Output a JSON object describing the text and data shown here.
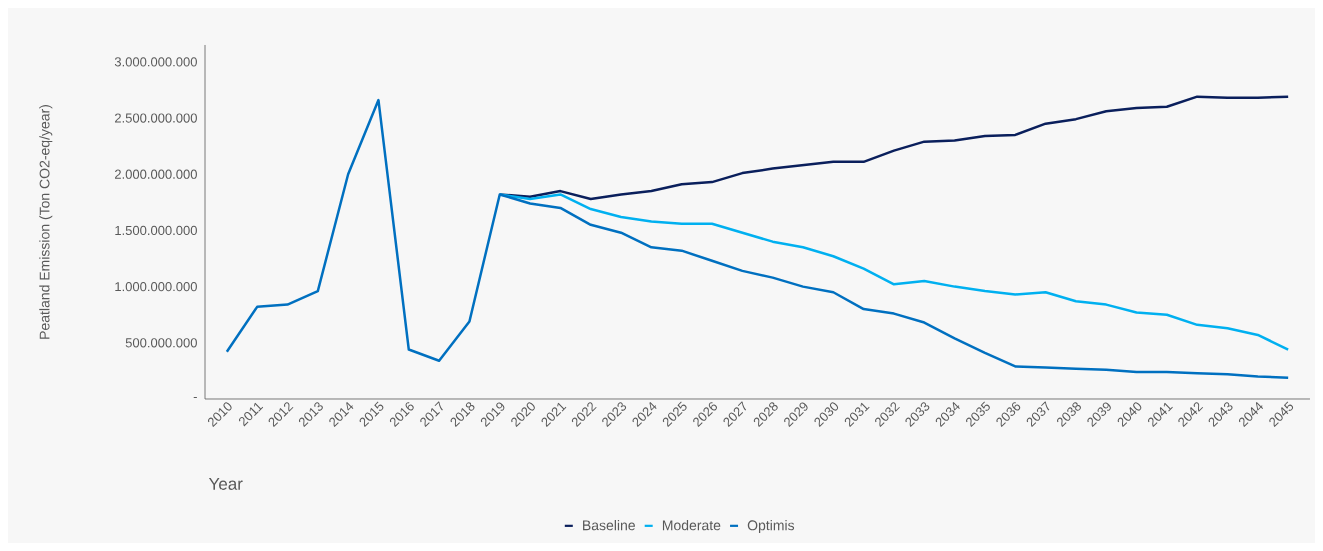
{
  "chart_data": {
    "type": "line",
    "xlabel": "Year",
    "ylabel": "Peatland Emission (Ton CO2-eq/year)",
    "categories": [
      "2010",
      "2011",
      "2012",
      "2013",
      "2014",
      "2015",
      "2016",
      "2017",
      "2018",
      "2019",
      "2020",
      "2021",
      "2022",
      "2023",
      "2024",
      "2025",
      "2026",
      "2027",
      "2028",
      "2029",
      "2030",
      "2031",
      "2032",
      "2033",
      "2034",
      "2035",
      "2036",
      "2037",
      "2038",
      "2039",
      "2040",
      "2041",
      "2042",
      "2043",
      "2044",
      "2045"
    ],
    "series": [
      {
        "name": "Baseline",
        "color": "#0a1f5c",
        "values": [
          null,
          null,
          null,
          null,
          null,
          null,
          null,
          null,
          null,
          1820000000,
          1800000000,
          1850000000,
          1780000000,
          1820000000,
          1850000000,
          1910000000,
          1930000000,
          2010000000,
          2050000000,
          2080000000,
          2110000000,
          2110000000,
          2210000000,
          2290000000,
          2300000000,
          2340000000,
          2350000000,
          2450000000,
          2490000000,
          2560000000,
          2590000000,
          2600000000,
          2690000000,
          2680000000,
          2680000000,
          2690000000
        ]
      },
      {
        "name": "Moderate",
        "color": "#00b0f0",
        "values": [
          null,
          null,
          null,
          null,
          null,
          null,
          null,
          null,
          null,
          1820000000,
          1780000000,
          1820000000,
          1690000000,
          1620000000,
          1580000000,
          1560000000,
          1560000000,
          1480000000,
          1400000000,
          1350000000,
          1270000000,
          1160000000,
          1020000000,
          1050000000,
          1000000000,
          960000000,
          930000000,
          950000000,
          870000000,
          840000000,
          770000000,
          750000000,
          660000000,
          630000000,
          570000000,
          440000000
        ]
      },
      {
        "name": "Optimis",
        "color": "#0070c0",
        "values": [
          420000000,
          820000000,
          840000000,
          960000000,
          2000000000,
          2660000000,
          440000000,
          340000000,
          690000000,
          1820000000,
          1740000000,
          1700000000,
          1550000000,
          1480000000,
          1350000000,
          1320000000,
          1230000000,
          1140000000,
          1080000000,
          1000000000,
          950000000,
          800000000,
          760000000,
          680000000,
          540000000,
          410000000,
          290000000,
          280000000,
          270000000,
          260000000,
          240000000,
          240000000,
          230000000,
          220000000,
          200000000,
          190000000
        ]
      }
    ],
    "ylim": [
      0,
      3150000000
    ],
    "yticks": [
      {
        "value": 0,
        "label": "-"
      },
      {
        "value": 500000000,
        "label": "500.000.000"
      },
      {
        "value": 1000000000,
        "label": "1.000.000.000"
      },
      {
        "value": 1500000000,
        "label": "1.500.000.000"
      },
      {
        "value": 2000000000,
        "label": "2.000.000.000"
      },
      {
        "value": 2500000000,
        "label": "2.500.000.000"
      },
      {
        "value": 3000000000,
        "label": "3.000.000.000"
      }
    ],
    "grid": false,
    "legend": "bottom",
    "marker": "none",
    "line_style": "solid"
  }
}
